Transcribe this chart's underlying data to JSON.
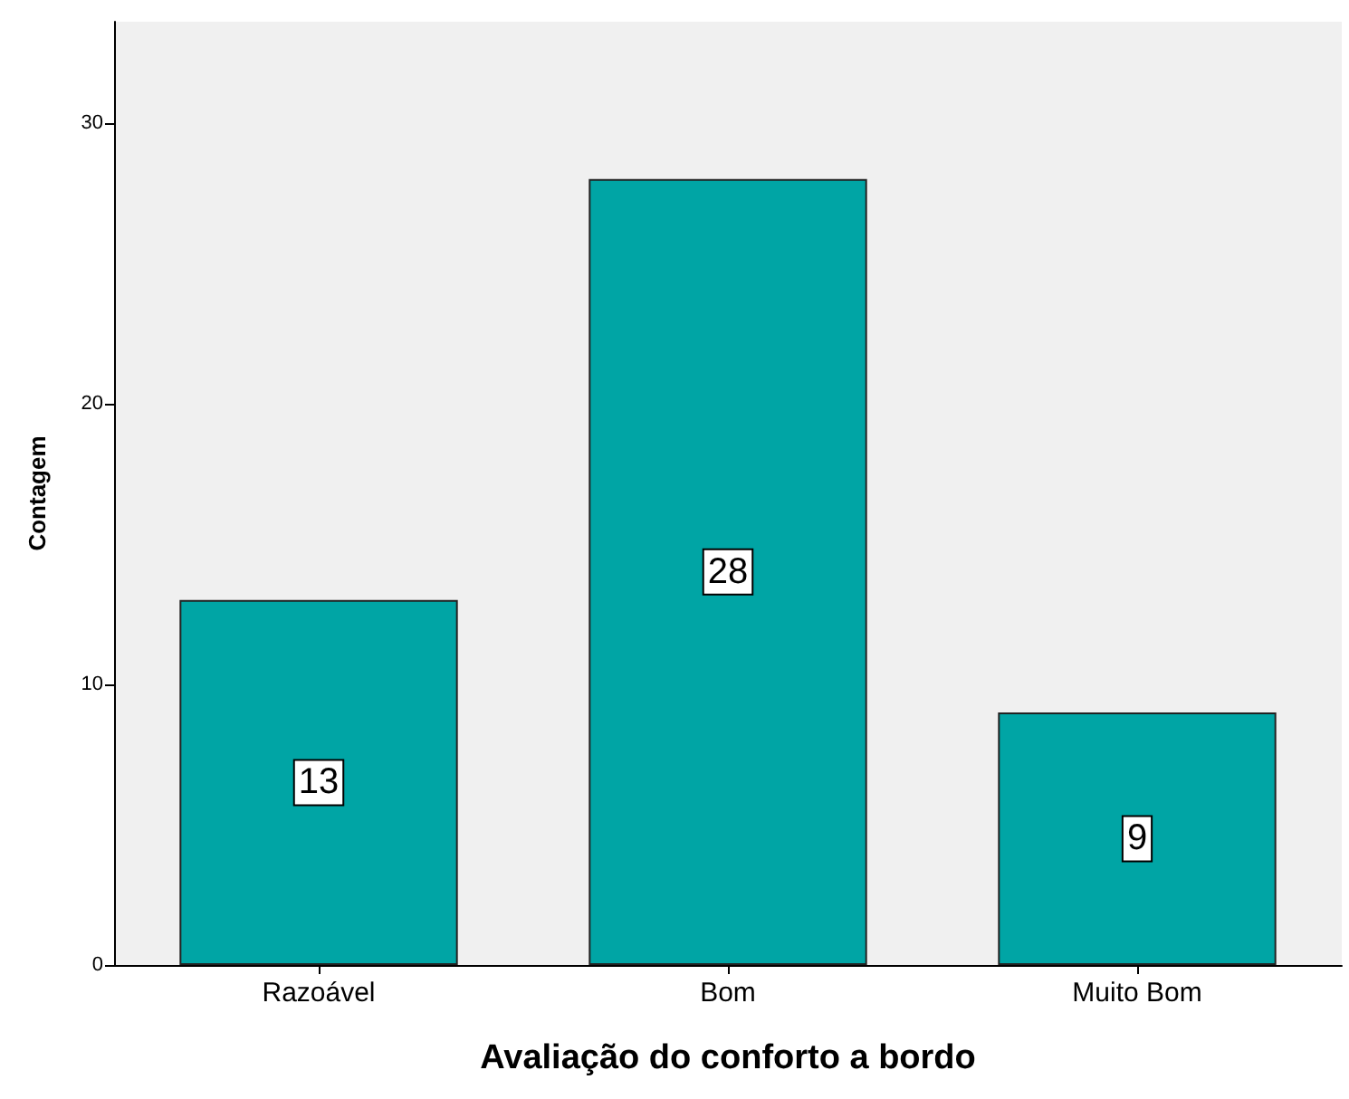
{
  "chart_data": {
    "type": "bar",
    "xlabel": "Avaliação do conforto a bordo",
    "ylabel": "Contagem",
    "categories": [
      "Razoável",
      "Bom",
      "Muito Bom"
    ],
    "values": [
      13,
      28,
      9
    ],
    "color": "#00a5a5",
    "ylim": [
      0,
      33.6
    ],
    "yticks": [
      0,
      10,
      20,
      30
    ],
    "grid": false,
    "data_labels": true
  }
}
